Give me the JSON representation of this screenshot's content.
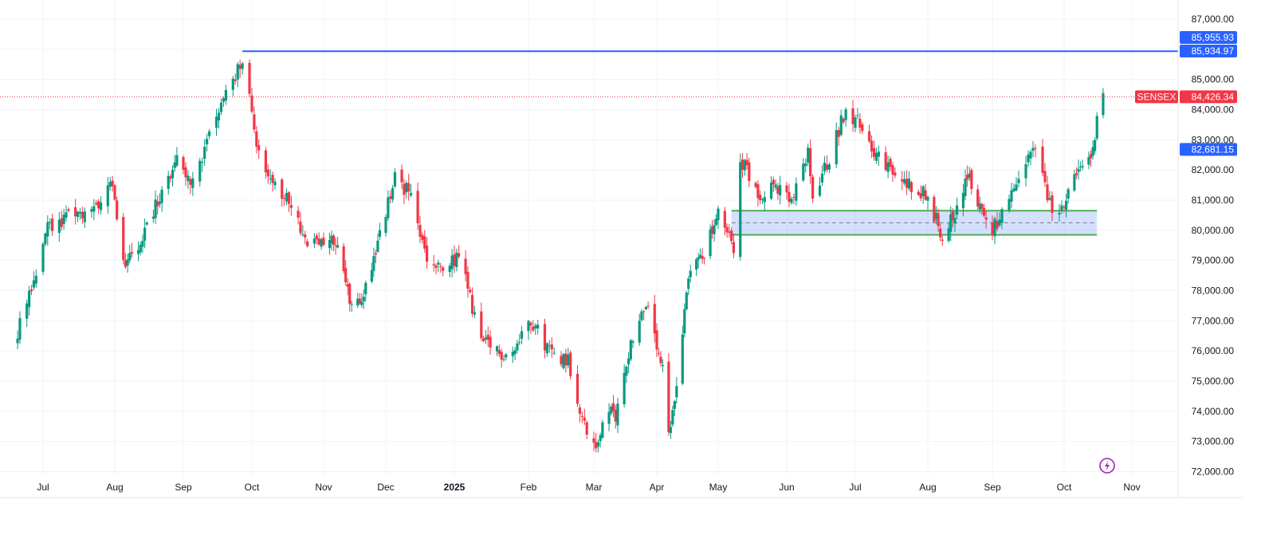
{
  "chart_data": {
    "type": "candlestick",
    "symbol": "SENSEX",
    "x_labels": [
      {
        "label": "Jul",
        "date": "2024-07-01"
      },
      {
        "label": "Aug",
        "date": "2024-08-01"
      },
      {
        "label": "Sep",
        "date": "2024-09-02"
      },
      {
        "label": "Oct",
        "date": "2024-10-01"
      },
      {
        "label": "Nov",
        "date": "2024-11-01"
      },
      {
        "label": "Dec",
        "date": "2024-12-02"
      },
      {
        "label": "2025",
        "date": "2025-01-01",
        "bold": true
      },
      {
        "label": "Feb",
        "date": "2025-02-03"
      },
      {
        "label": "Mar",
        "date": "2025-03-03"
      },
      {
        "label": "Apr",
        "date": "2025-04-01"
      },
      {
        "label": "May",
        "date": "2025-05-02"
      },
      {
        "label": "Jun",
        "date": "2025-06-02"
      },
      {
        "label": "Jul",
        "date": "2025-07-01"
      },
      {
        "label": "Aug",
        "date": "2025-08-01"
      },
      {
        "label": "Sep",
        "date": "2025-09-01"
      },
      {
        "label": "Oct",
        "date": "2025-10-01"
      },
      {
        "label": "Nov",
        "date": "2025-11-03"
      }
    ],
    "y_ticks": [
      "87,000.00",
      "86,000.00",
      "85,000.00",
      "84,000.00",
      "83,000.00",
      "82,000.00",
      "81,000.00",
      "80,000.00",
      "79,000.00",
      "78,000.00",
      "77,000.00",
      "76,000.00",
      "75,000.00",
      "74,000.00",
      "73,000.00",
      "72,000.00"
    ],
    "ylim": [
      71800,
      87500
    ],
    "grid": true,
    "last_price": {
      "label": "SENSEX",
      "value": "84,426.34",
      "color": "#f23645"
    },
    "price_badges": [
      {
        "value": "85,955.93",
        "color": "#2962ff"
      },
      {
        "value": "85,934.97",
        "color": "#2962ff"
      },
      {
        "value": "82,681.15",
        "color": "#2962ff"
      }
    ],
    "horizontal_line": {
      "price": 85935,
      "start_date": "2024-09-27",
      "color": "#2962ff"
    },
    "range_box": {
      "start_date": "2025-05-08",
      "end_date": "2025-10-17",
      "top": 80650,
      "bottom": 79850,
      "mid": 80250,
      "fill": "#2962ff",
      "border": "#4caf50"
    },
    "up_color": "#089981",
    "down_color": "#f23645",
    "anchors": [
      [
        "2024-06-20",
        76600
      ],
      [
        "2024-07-03",
        80100
      ],
      [
        "2024-07-12",
        80500
      ],
      [
        "2024-07-23",
        80600
      ],
      [
        "2024-07-31",
        81700
      ],
      [
        "2024-08-05",
        78900
      ],
      [
        "2024-08-13",
        79500
      ],
      [
        "2024-08-20",
        80800
      ],
      [
        "2024-08-30",
        82300
      ],
      [
        "2024-09-06",
        81500
      ],
      [
        "2024-09-12",
        82900
      ],
      [
        "2024-09-20",
        84500
      ],
      [
        "2024-09-27",
        85600
      ],
      [
        "2024-10-04",
        82500
      ],
      [
        "2024-10-11",
        81400
      ],
      [
        "2024-10-17",
        81000
      ],
      [
        "2024-10-25",
        79400
      ],
      [
        "2024-11-01",
        79700
      ],
      [
        "2024-11-08",
        79500
      ],
      [
        "2024-11-14",
        77600
      ],
      [
        "2024-11-19",
        77500
      ],
      [
        "2024-11-29",
        79800
      ],
      [
        "2024-12-06",
        81700
      ],
      [
        "2024-12-12",
        81300
      ],
      [
        "2024-12-20",
        79000
      ],
      [
        "2024-12-27",
        78600
      ],
      [
        "2025-01-03",
        79200
      ],
      [
        "2025-01-13",
        76300
      ],
      [
        "2025-01-21",
        75900
      ],
      [
        "2025-01-28",
        76000
      ],
      [
        "2025-02-03",
        77200
      ],
      [
        "2025-02-12",
        76000
      ],
      [
        "2025-02-20",
        75700
      ],
      [
        "2025-02-28",
        73200
      ],
      [
        "2025-03-04",
        72900
      ],
      [
        "2025-03-10",
        74000
      ],
      [
        "2025-03-13",
        73800
      ],
      [
        "2025-03-20",
        76300
      ],
      [
        "2025-03-27",
        77600
      ],
      [
        "2025-04-01",
        76000
      ],
      [
        "2025-04-04",
        75300
      ],
      [
        "2025-04-07",
        73200
      ],
      [
        "2025-04-09",
        73800
      ],
      [
        "2025-04-17",
        78550
      ],
      [
        "2025-04-25",
        79300
      ],
      [
        "2025-05-02",
        80500
      ],
      [
        "2025-05-09",
        79450
      ],
      [
        "2025-05-12",
        82400
      ],
      [
        "2025-05-20",
        81200
      ],
      [
        "2025-05-27",
        81500
      ],
      [
        "2025-06-04",
        80900
      ],
      [
        "2025-06-11",
        82500
      ],
      [
        "2025-06-13",
        81100
      ],
      [
        "2025-06-20",
        82400
      ],
      [
        "2025-06-27",
        84050
      ],
      [
        "2025-07-04",
        83400
      ],
      [
        "2025-07-10",
        82500
      ],
      [
        "2025-07-18",
        81750
      ],
      [
        "2025-07-25",
        81500
      ],
      [
        "2025-07-31",
        81200
      ],
      [
        "2025-08-08",
        79850
      ],
      [
        "2025-08-14",
        80600
      ],
      [
        "2025-08-20",
        81800
      ],
      [
        "2025-08-26",
        80800
      ],
      [
        "2025-09-01",
        80000
      ],
      [
        "2025-09-10",
        81200
      ],
      [
        "2025-09-16",
        82400
      ],
      [
        "2025-09-19",
        82700
      ],
      [
        "2025-09-26",
        80500
      ],
      [
        "2025-10-03",
        81200
      ],
      [
        "2025-10-09",
        82000
      ],
      [
        "2025-10-15",
        82600
      ],
      [
        "2025-10-17",
        83900
      ],
      [
        "2025-10-20",
        84426
      ]
    ]
  }
}
